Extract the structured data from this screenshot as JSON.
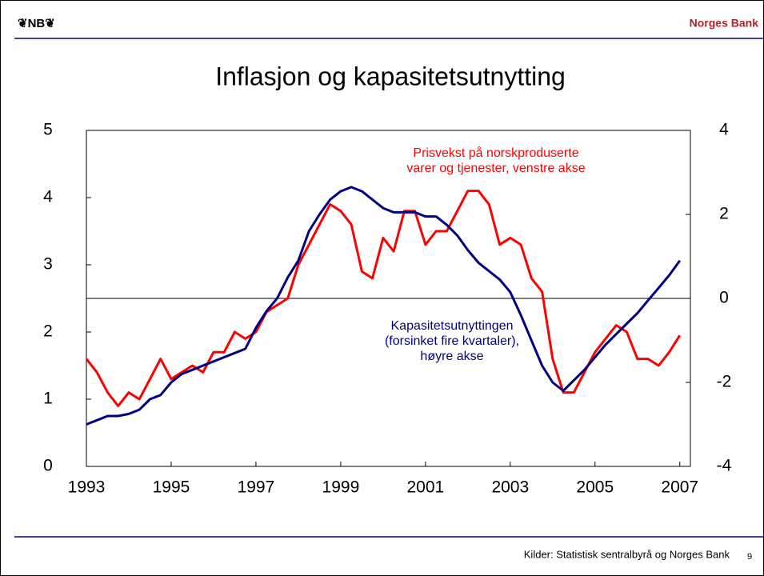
{
  "header": {
    "logo": "❦NB❦",
    "org": "Norges Bank"
  },
  "footer": {
    "source": "Kilder: Statistisk sentralbyrå og Norges Bank",
    "page": "9"
  },
  "chart_data": {
    "type": "line",
    "title": "Inflasjon og kapasitetsutnytting",
    "x": [
      1993,
      1993.25,
      1993.5,
      1993.75,
      1994,
      1994.25,
      1994.5,
      1994.75,
      1995,
      1995.25,
      1995.5,
      1995.75,
      1996,
      1996.25,
      1996.5,
      1996.75,
      1997,
      1997.25,
      1997.5,
      1997.75,
      1998,
      1998.25,
      1998.5,
      1998.75,
      1999,
      1999.25,
      1999.5,
      1999.75,
      2000,
      2000.25,
      2000.5,
      2000.75,
      2001,
      2001.25,
      2001.5,
      2001.75,
      2002,
      2002.25,
      2002.5,
      2002.75,
      2003,
      2003.25,
      2003.5,
      2003.75,
      2004,
      2004.25,
      2004.5,
      2004.75,
      2005,
      2005.25,
      2005.5,
      2005.75,
      2006,
      2006.25,
      2006.5,
      2006.75,
      2007
    ],
    "series": [
      {
        "name": "Prisvekst på norskproduserte varer og tjenester, venstre akse",
        "color": "#ff0000",
        "axis": "y",
        "label_lines": [
          "Prisvekst på norskproduserte",
          "varer og tjenester, venstre akse"
        ],
        "values": [
          1.6,
          1.4,
          1.1,
          0.9,
          1.1,
          1.0,
          1.3,
          1.6,
          1.3,
          1.4,
          1.5,
          1.4,
          1.7,
          1.7,
          2.0,
          1.9,
          2.0,
          2.3,
          2.4,
          2.5,
          3.0,
          3.3,
          3.6,
          3.9,
          3.8,
          3.6,
          2.9,
          2.8,
          3.4,
          3.2,
          3.8,
          3.8,
          3.3,
          3.5,
          3.5,
          3.8,
          4.1,
          4.1,
          3.9,
          3.3,
          3.4,
          3.3,
          2.8,
          2.6,
          1.6,
          1.1,
          1.1,
          1.4,
          1.7,
          1.9,
          2.1,
          2.0,
          1.6,
          1.6,
          1.5,
          1.7,
          1.95
        ]
      },
      {
        "name": "Kapasitetsutnyttingen (forsinket fire kvartaler), høyre akse",
        "color": "#000080",
        "axis": "y2",
        "label_lines": [
          "Kapasitetsutnyttingen",
          "(forsinket fire kvartaler),",
          "høyre akse"
        ],
        "values": [
          -3.0,
          -2.9,
          -2.8,
          -2.8,
          -2.75,
          -2.65,
          -2.4,
          -2.3,
          -2.0,
          -1.8,
          -1.7,
          -1.6,
          -1.5,
          -1.4,
          -1.3,
          -1.2,
          -0.7,
          -0.3,
          0.0,
          0.5,
          0.9,
          1.6,
          2.0,
          2.35,
          2.55,
          2.65,
          2.55,
          2.35,
          2.15,
          2.05,
          2.05,
          2.05,
          1.95,
          1.95,
          1.75,
          1.5,
          1.15,
          0.85,
          0.65,
          0.45,
          0.15,
          -0.4,
          -1.0,
          -1.6,
          -2.0,
          -2.2,
          -1.95,
          -1.7,
          -1.4,
          -1.1,
          -0.85,
          -0.6,
          -0.35,
          -0.05,
          0.25,
          0.55,
          0.9
        ]
      }
    ],
    "xlim": [
      1993,
      2007.25
    ],
    "xticks": [
      1993,
      1995,
      1997,
      1999,
      2001,
      2003,
      2005,
      2007
    ],
    "ylim": [
      0,
      5
    ],
    "yticks": [
      0,
      1,
      2,
      3,
      4,
      5
    ],
    "y2lim": [
      -4,
      4
    ],
    "y2ticks": [
      -4,
      -2,
      0,
      2,
      4
    ],
    "y2_reference_line": 0
  }
}
